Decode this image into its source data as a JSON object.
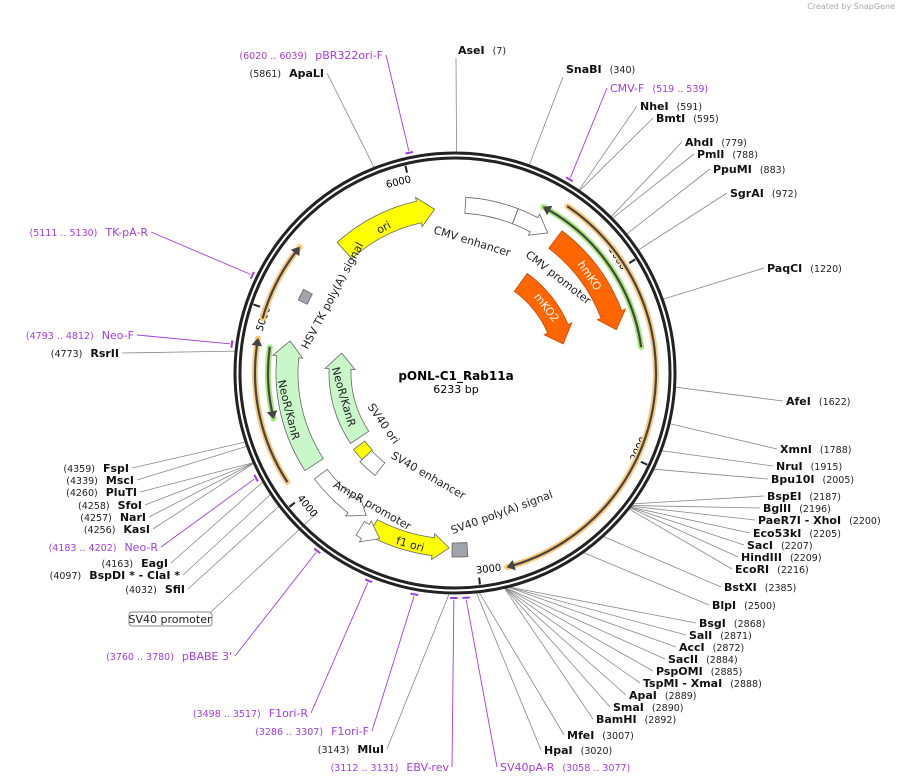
{
  "credit": "Created by SnapGene",
  "plasmid": {
    "name": "pONL-C1_Rab11a",
    "length": "6233 bp",
    "total_bp": 6233
  },
  "ticks": [
    "1000",
    "2000",
    "3000",
    "4000",
    "5000",
    "6000"
  ],
  "enzymes": [
    {
      "name": "AseI",
      "pos": "(7)"
    },
    {
      "name": "SnaBI",
      "pos": "(340)"
    },
    {
      "name": "NheI",
      "pos": "(591)"
    },
    {
      "name": "BmtI",
      "pos": "(595)"
    },
    {
      "name": "AhdI",
      "pos": "(779)"
    },
    {
      "name": "PmlI",
      "pos": "(788)"
    },
    {
      "name": "PpuMI",
      "pos": "(883)"
    },
    {
      "name": "SgrAI",
      "pos": "(972)"
    },
    {
      "name": "PaqCI",
      "pos": "(1220)"
    },
    {
      "name": "AfeI",
      "pos": "(1622)"
    },
    {
      "name": "XmnI",
      "pos": "(1788)"
    },
    {
      "name": "NruI",
      "pos": "(1915)"
    },
    {
      "name": "Bpu10I",
      "pos": "(2005)"
    },
    {
      "name": "BspEI",
      "pos": "(2187)"
    },
    {
      "name": "BglII",
      "pos": "(2196)"
    },
    {
      "name": "PaeR7I  - XhoI",
      "pos": "(2200)"
    },
    {
      "name": "Eco53kI",
      "pos": "(2205)"
    },
    {
      "name": "SacI",
      "pos": "(2207)"
    },
    {
      "name": "HindIII",
      "pos": "(2209)"
    },
    {
      "name": "EcoRI",
      "pos": "(2216)"
    },
    {
      "name": "BstXI",
      "pos": "(2385)"
    },
    {
      "name": "BlpI",
      "pos": "(2500)"
    },
    {
      "name": "BsgI",
      "pos": "(2868)"
    },
    {
      "name": "SalI",
      "pos": "(2871)"
    },
    {
      "name": "AccI",
      "pos": "(2872)"
    },
    {
      "name": "SacII",
      "pos": "(2884)"
    },
    {
      "name": "PspOMI",
      "pos": "(2885)"
    },
    {
      "name": "TspMI  - XmaI",
      "pos": "(2888)"
    },
    {
      "name": "ApaI",
      "pos": "(2889)"
    },
    {
      "name": "SmaI",
      "pos": "(2890)"
    },
    {
      "name": "BamHI",
      "pos": "(2892)"
    },
    {
      "name": "MfeI",
      "pos": "(3007)"
    },
    {
      "name": "HpaI",
      "pos": "(3020)"
    },
    {
      "name": "MluI",
      "pos": "(3143)"
    },
    {
      "name": "SfiI",
      "pos": "(4032)"
    },
    {
      "name": "BspDI *  - ClaI *",
      "pos": "(4097)"
    },
    {
      "name": "EagI",
      "pos": "(4163)"
    },
    {
      "name": "KasI",
      "pos": "(4256)"
    },
    {
      "name": "NarI",
      "pos": "(4257)"
    },
    {
      "name": "SfoI",
      "pos": "(4258)"
    },
    {
      "name": "PluTI",
      "pos": "(4260)"
    },
    {
      "name": "MscI",
      "pos": "(4339)"
    },
    {
      "name": "FspI",
      "pos": "(4359)"
    },
    {
      "name": "RsrII",
      "pos": "(4773)"
    },
    {
      "name": "ApaLI",
      "pos": "(5861)"
    }
  ],
  "primers": [
    {
      "name": "pBR322ori-F",
      "range": "(6020 .. 6039)"
    },
    {
      "name": "CMV-F",
      "range": "(519 .. 539)"
    },
    {
      "name": "TK-pA-R",
      "range": "(5111 .. 5130)"
    },
    {
      "name": "Neo-F",
      "range": "(4793 .. 4812)"
    },
    {
      "name": "Neo-R",
      "range": "(4183 .. 4202)"
    },
    {
      "name": "pBABE 3'",
      "range": "(3760 .. 3780)"
    },
    {
      "name": "F1ori-R",
      "range": "(3498 .. 3517)"
    },
    {
      "name": "F1ori-F",
      "range": "(3286 .. 3307)"
    },
    {
      "name": "EBV-rev",
      "range": "(3112 .. 3131)"
    },
    {
      "name": "SV40pA-R",
      "range": "(3058 .. 3077)"
    }
  ],
  "features": [
    {
      "name": "CMV enhancer",
      "start": 61,
      "end": 364,
      "dir": "none",
      "color": "#ffffff"
    },
    {
      "name": "CMV promoter",
      "start": 365,
      "end": 580,
      "dir": "cw",
      "color": "#ffffff"
    },
    {
      "name": "hmKO",
      "start": 640,
      "end": 1298,
      "dir": "cw",
      "color": "#ff6600"
    },
    {
      "name": "mKO2",
      "start": 623,
      "end": 1298,
      "dir": "cw",
      "color": "#ff6600"
    },
    {
      "name": "ori",
      "start": 5505,
      "end": 6110,
      "dir": "cw",
      "color": "#ffff00"
    },
    {
      "name": "HSV TK poly(A) signal",
      "start": 5107,
      "end": 5176,
      "dir": "none",
      "color": "#a0a4ab"
    },
    {
      "name": "NeoR/KanR",
      "start": 4103,
      "end": 4865,
      "dir": "cw",
      "color": "#c9f7c9"
    },
    {
      "name": "NeoR/KanR",
      "start": 4086,
      "end": 4847,
      "dir": "cw",
      "color": "#c9f7c9"
    },
    {
      "name": "SV40 ori",
      "start": 3930,
      "end": 4034,
      "dir": "none",
      "color": "#ffff00"
    },
    {
      "name": "SV40 enhancer",
      "start": 3774,
      "end": 3930,
      "dir": "none",
      "color": "#ffffff"
    },
    {
      "name": "AmpR promoter",
      "start": 3670,
      "end": 4034,
      "dir": "ccw",
      "color": "#ffffff"
    },
    {
      "name": "f1 ori",
      "start": 3150,
      "end": 3600,
      "dir": "ccw",
      "color": "#ffff00"
    },
    {
      "name": "SV40 poly(A) signal",
      "start": 3047,
      "end": 3133,
      "dir": "none",
      "color": "#a0a4ab"
    },
    {
      "name": "SV40 promoter",
      "start": 3540,
      "end": 3660,
      "dir": "ccw",
      "color": "#ffffff"
    }
  ],
  "tracks": [
    {
      "start": 485,
      "end": 1420,
      "dir": "ccw",
      "color": "#a6e87a"
    },
    {
      "start": 589,
      "end": 2856,
      "dir": "cw",
      "color": "#fcc87a"
    },
    {
      "start": 4950,
      "end": 5350,
      "dir": "cw",
      "color": "#fcc87a"
    },
    {
      "start": 4103,
      "end": 4847,
      "dir": "cw",
      "color": "#fcc87a"
    },
    {
      "start": 4431,
      "end": 4812,
      "dir": "ccw",
      "color": "#a6e87a"
    }
  ],
  "colors": {
    "primer": "#a03de0",
    "leader": "#888888",
    "backbone": "#222222"
  }
}
